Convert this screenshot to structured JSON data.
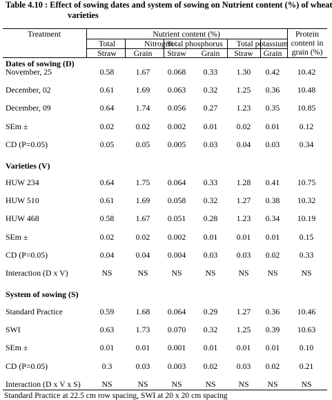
{
  "caption": {
    "line1": "Table 4.10 : Effect of sowing dates and system of sowing on Nutrient  content (%)  of wheat",
    "line2": "varieties"
  },
  "header": {
    "treatment": "Treatment",
    "nutrient_content": "Nutrient content (%)",
    "protein_lines": [
      "Protein",
      "content in",
      "grain (%)"
    ],
    "groups": [
      "Total",
      "Nitrogen",
      "Total phosphorus",
      "Total potassium"
    ],
    "subcols": [
      "Straw",
      "Grain",
      "Straw",
      "Grain",
      "Straw",
      "Grain"
    ]
  },
  "sections": [
    {
      "title": "Dates of sowing (D)",
      "rows": [
        {
          "label": "November, 25",
          "values": [
            "0.58",
            "1.67",
            "0.068",
            "0.33",
            "1.30",
            "0.42",
            "10.42"
          ]
        },
        {
          "label": "December, 02",
          "values": [
            "0.61",
            "1.69",
            "0.063",
            "0.32",
            "1.25",
            "0.36",
            "10.48"
          ]
        },
        {
          "label": "December, 09",
          "values": [
            "0.64",
            "1.74",
            "0.056",
            "0.27",
            "1.23",
            "0.35",
            "10.85"
          ]
        },
        {
          "label": "SEm ±",
          "values": [
            "0.02",
            "0.02",
            "0.002",
            "0.01",
            "0.02",
            "0.01",
            "0.12"
          ]
        },
        {
          "label": "CD (P=0.05)",
          "values": [
            "0.05",
            "0.05",
            "0.005",
            "0.03",
            "0.04",
            "0.03",
            "0.34"
          ]
        }
      ]
    },
    {
      "title": "Varieties (V)",
      "rows": [
        {
          "label": "HUW 234",
          "values": [
            "0.64",
            "1.75",
            "0.064",
            "0.33",
            "1.28",
            "0.41",
            "10.75"
          ]
        },
        {
          "label": "HUW 510",
          "values": [
            "0.61",
            "1.69",
            "0.058",
            "0.32",
            "1.27",
            "0.38",
            "10.32"
          ]
        },
        {
          "label": "HUW 468",
          "values": [
            "0.58",
            "1.67",
            "0.051",
            "0.28",
            "1.23",
            "0.34",
            "10.19"
          ]
        },
        {
          "label": "SEm ±",
          "values": [
            "0.02",
            "0.02",
            "0.002",
            "0.01",
            "0.01",
            "0.01",
            "0.15"
          ]
        },
        {
          "label": "CD (P=0.05)",
          "values": [
            "0.04",
            "0.04",
            "0.004",
            "0.03",
            "0.03",
            "0.02",
            "0.33"
          ]
        },
        {
          "label": "Interaction (D x V)",
          "values": [
            "NS",
            "NS",
            "NS",
            "NS",
            "NS",
            "NS",
            "NS"
          ]
        }
      ]
    },
    {
      "title": "System of sowing (S)",
      "rows": [
        {
          "label": "Standard Practice",
          "values": [
            "0.59",
            "1.68",
            "0.064",
            "0.29",
            "1.27",
            "0.36",
            "10.46"
          ]
        },
        {
          "label": "SWI",
          "values": [
            "0.63",
            "1.73",
            "0.070",
            "0.32",
            "1.25",
            "0.39",
            "10.63"
          ]
        },
        {
          "label": "SEm ±",
          "values": [
            "0.01",
            "0.01",
            "0.001",
            "0.01",
            "0.01",
            "0.01",
            "0.10"
          ]
        },
        {
          "label": "CD (P=0.05)",
          "values": [
            "0.3",
            "0.03",
            "0.003",
            "0.02",
            "0.03",
            "0.02",
            "0.21"
          ]
        },
        {
          "label": "Interaction (D x V x S)",
          "values": [
            "NS",
            "NS",
            "NS",
            "NS",
            "NS",
            "NS",
            "NS"
          ]
        }
      ]
    }
  ],
  "footnote": "Standard Practice at 22.5 cm row spacing, SWI at 20 x 20 cm spacing"
}
